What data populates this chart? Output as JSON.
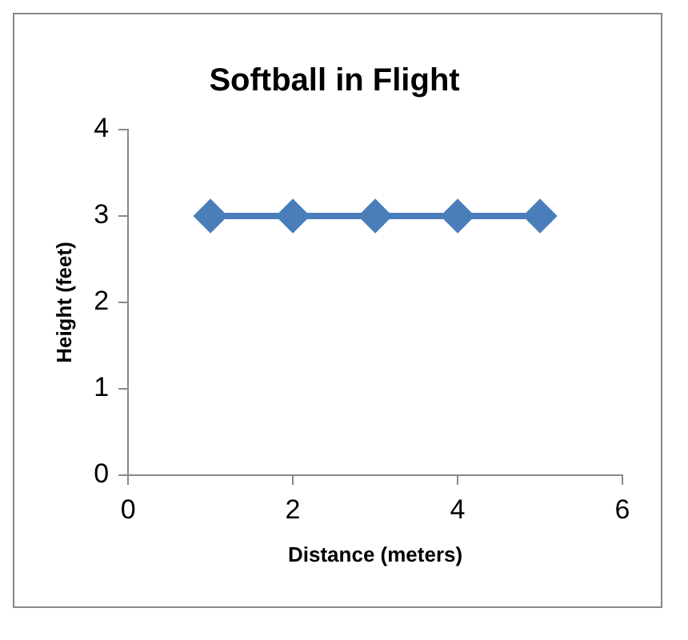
{
  "chart_data": {
    "type": "line",
    "title": "Softball in Flight",
    "xlabel": "Distance (meters)",
    "ylabel": "Height (feet)",
    "x": [
      1,
      2,
      3,
      4,
      5
    ],
    "series": [
      {
        "color": "#4a7ebb",
        "values": [
          3,
          3,
          3,
          3,
          3
        ]
      }
    ],
    "xlim": [
      0,
      6
    ],
    "xticks": [
      0,
      2,
      4,
      6
    ],
    "ylim": [
      0,
      4
    ],
    "yticks": [
      0,
      1,
      2,
      3,
      4
    ],
    "grid": false,
    "legend": false,
    "marker": "diamond",
    "line_style": "solid"
  }
}
